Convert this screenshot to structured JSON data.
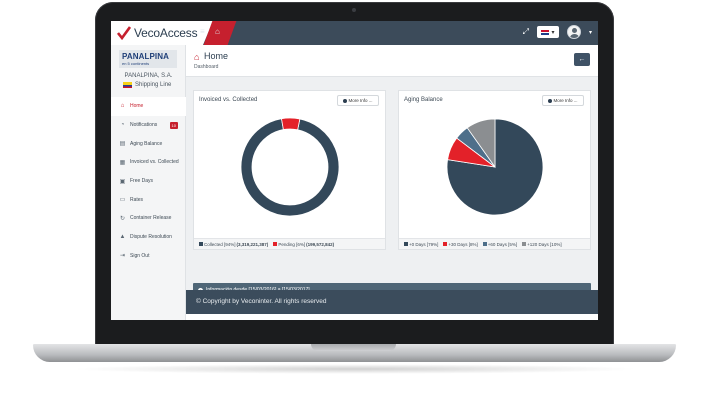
{
  "app": {
    "brand": "VecoAccess"
  },
  "company": {
    "logo_text": "PANALPINA",
    "logo_sub": "en 5 continents",
    "name": "PANALPINA, S.A.",
    "type": "Shipping Line"
  },
  "sidebar": {
    "items": [
      {
        "label": "Home",
        "icon": "home-icon",
        "active": true
      },
      {
        "label": "Notifications",
        "icon": "bell-icon",
        "badge": "10"
      },
      {
        "label": "Aging Balance",
        "icon": "document-icon"
      },
      {
        "label": "Invoiced vs. Collected",
        "icon": "invoice-icon"
      },
      {
        "label": "Free Days",
        "icon": "calendar-icon"
      },
      {
        "label": "Rates",
        "icon": "money-icon"
      },
      {
        "label": "Container Release",
        "icon": "refresh-icon"
      },
      {
        "label": "Dispute Resolution",
        "icon": "warning-icon"
      },
      {
        "label": "Sign Out",
        "icon": "sign-out-icon"
      }
    ]
  },
  "page": {
    "title": "Home",
    "breadcrumb": "Dashboard"
  },
  "panels": {
    "invoiced": {
      "title": "Invoiced vs. Collected",
      "more": "More Info ..."
    },
    "aging": {
      "title": "Aging Balance",
      "more": "More Info ..."
    }
  },
  "legend": {
    "collected_label": "Collected [94%]",
    "collected_value": "(3,319,221,387)",
    "pending_label": "Pending [6%]",
    "pending_value": "(199,572,842)",
    "d0": "+0 Days [79%]",
    "d30": "+30 Days [8%]",
    "d60": "+60 Days [5%]",
    "d120": "+120 Days [10%]"
  },
  "info_bar": {
    "text": "Información desde [15/03/2016] a [15/03/2017]"
  },
  "footer": {
    "text": "© Copyright by Veconinter. All rights reserved"
  },
  "colors": {
    "dark": "#33485a",
    "red": "#e32129",
    "blue": "#4e6f8a",
    "grey": "#8b8e91"
  },
  "chart_data": [
    {
      "type": "pie",
      "variant": "donut",
      "title": "Invoiced vs. Collected",
      "labels": [
        "Collected",
        "Pending"
      ],
      "values": [
        94,
        6
      ],
      "amounts": [
        3319221387,
        199572842
      ],
      "colors": [
        "#33485a",
        "#e32129"
      ]
    },
    {
      "type": "pie",
      "title": "Aging Balance",
      "labels": [
        "+0 Days",
        "+30 Days",
        "+60 Days",
        "+120 Days"
      ],
      "values": [
        79,
        8,
        5,
        10
      ],
      "colors": [
        "#33485a",
        "#e32129",
        "#4e6f8a",
        "#8b8e91"
      ]
    }
  ]
}
